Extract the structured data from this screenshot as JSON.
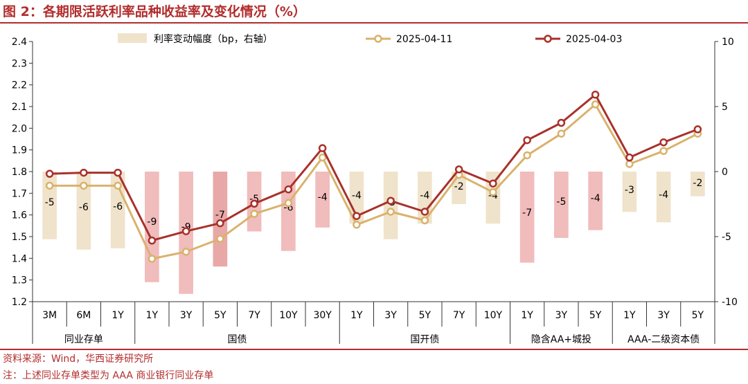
{
  "header": {
    "title": "图 2：各期限活跃利率品种收益率及变化情况（%）"
  },
  "footer": {
    "source": "资料来源：Wind，华西证券研究所",
    "note": "注：上述同业存单类型为 AAA 商业银行同业存单"
  },
  "chart_data": {
    "type": "bar+line",
    "title": "",
    "y_left": {
      "min": 1.2,
      "max": 2.4,
      "ticks": [
        "1.2",
        "1.3",
        "1.4",
        "1.5",
        "1.6",
        "1.7",
        "1.8",
        "1.9",
        "2.0",
        "2.1",
        "2.2",
        "2.3",
        "2.4"
      ]
    },
    "y_right": {
      "min": -10,
      "max": 10,
      "ticks": [
        "-10",
        "-5",
        "0",
        "5",
        "10"
      ]
    },
    "categories": [
      "3M",
      "6M",
      "1Y",
      "1Y",
      "3Y",
      "5Y",
      "7Y",
      "10Y",
      "30Y",
      "1Y",
      "3Y",
      "5Y",
      "7Y",
      "10Y",
      "1Y",
      "3Y",
      "5Y",
      "1Y",
      "3Y",
      "5Y"
    ],
    "groups": [
      {
        "name": "同业存单",
        "count": 3
      },
      {
        "name": "国债",
        "count": 6
      },
      {
        "name": "国开债",
        "count": 5
      },
      {
        "name": "隐含AA+城投",
        "count": 3
      },
      {
        "name": "AAA-二级资本债",
        "count": 3
      }
    ],
    "series": [
      {
        "name": "利率变动幅度（bp，右轴）",
        "kind": "bar",
        "axis": "right",
        "values": [
          -5.2,
          -6.0,
          -5.9,
          -8.5,
          -9.4,
          -7.3,
          -4.6,
          -6.1,
          -4.3,
          -4.0,
          -5.2,
          -4.0,
          -2.5,
          -4.0,
          -7.0,
          -5.1,
          -4.5,
          -3.1,
          -3.9,
          -1.9
        ],
        "labels": [
          "-5",
          "-6",
          "-6",
          "-9",
          "-9",
          "-7",
          "-5",
          "-6",
          "-4",
          "-4",
          "-5",
          "-4",
          "-2",
          "-4",
          "-7",
          "-5",
          "-4",
          "-3",
          "-4",
          "-2"
        ],
        "color": "#f0e3cb",
        "colors": [
          "#f0e3cb",
          "#f0e3cb",
          "#f0e3cb",
          "#f1bcbc",
          "#f1bcbc",
          "#e8a8a8",
          "#f1bcbc",
          "#f1bcbc",
          "#f1bcbc",
          "#f0e3cb",
          "#f0e3cb",
          "#f0e3cb",
          "#f0e3cb",
          "#f0e3cb",
          "#f1bcbc",
          "#f1bcbc",
          "#f1bcbc",
          "#f0e3cb",
          "#f0e3cb",
          "#f0e3cb"
        ]
      },
      {
        "name": "2025-04-11",
        "kind": "line",
        "axis": "left",
        "color": "#d9b26c",
        "values": [
          1.735,
          1.735,
          1.735,
          1.398,
          1.43,
          1.49,
          1.605,
          1.655,
          1.865,
          1.555,
          1.615,
          1.575,
          1.785,
          1.705,
          1.875,
          1.975,
          2.11,
          1.835,
          1.895,
          1.975
        ]
      },
      {
        "name": "2025-04-03",
        "kind": "line",
        "axis": "left",
        "color": "#a8312b",
        "values": [
          1.79,
          1.795,
          1.795,
          1.482,
          1.525,
          1.562,
          1.652,
          1.718,
          1.908,
          1.595,
          1.665,
          1.615,
          1.81,
          1.745,
          1.945,
          2.025,
          2.155,
          1.865,
          1.935,
          1.995
        ]
      }
    ],
    "legend": {
      "position": "top"
    },
    "grid": false
  }
}
